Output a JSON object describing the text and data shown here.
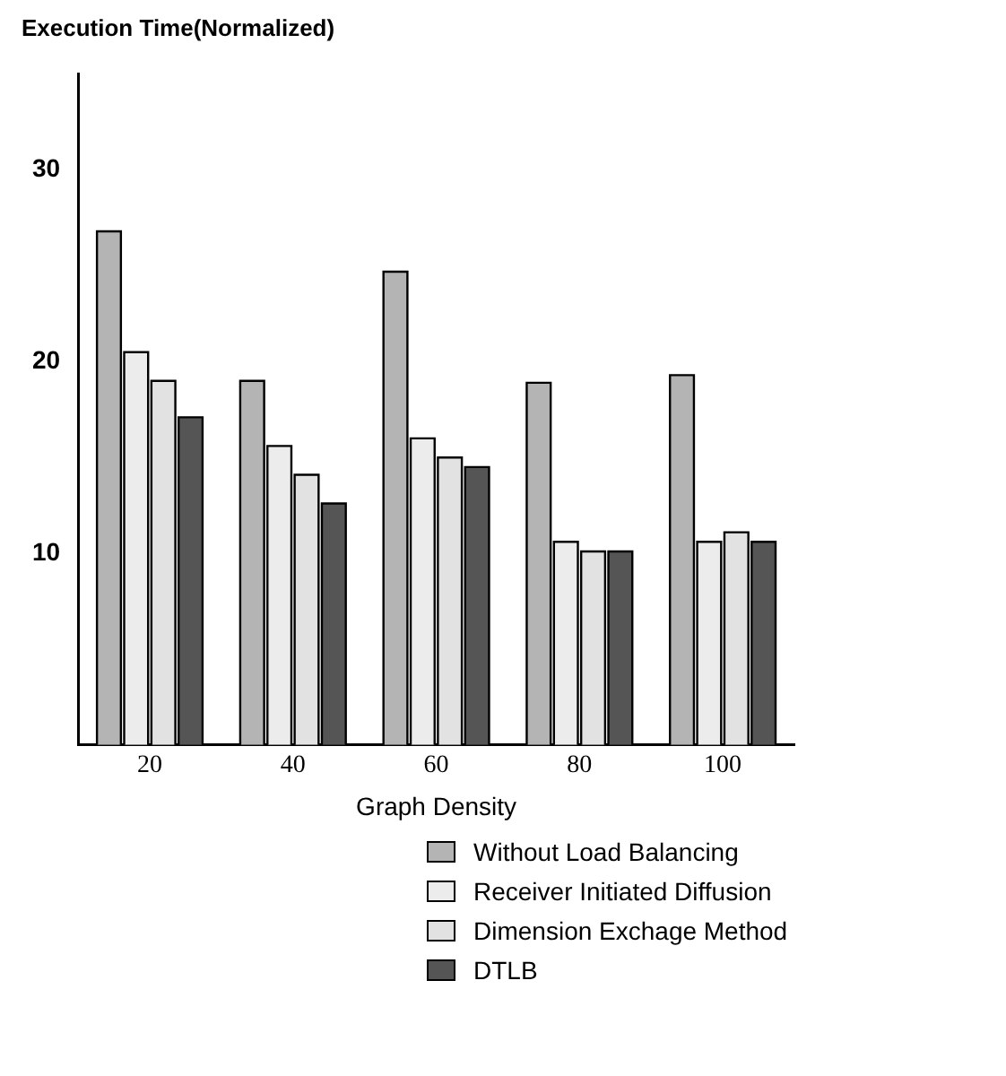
{
  "chart_data": {
    "type": "bar",
    "ylabel": "Execution Time(Normalized)",
    "xlabel": "Graph Density",
    "categories": [
      "20",
      "40",
      "60",
      "80",
      "100"
    ],
    "series": [
      {
        "name": "Without Load Balancing",
        "color": "#b4b4b4",
        "values": [
          26.8,
          19.0,
          24.7,
          18.9,
          19.3
        ]
      },
      {
        "name": "Receiver Initiated Diffusion",
        "color": "#ececec",
        "values": [
          20.5,
          15.6,
          16.0,
          10.6,
          10.6
        ]
      },
      {
        "name": "Dimension Exchage Method",
        "color": "#e2e2e2",
        "values": [
          19.0,
          14.1,
          15.0,
          10.1,
          11.1
        ]
      },
      {
        "name": "DTLB",
        "color": "#555555",
        "values": [
          17.1,
          12.6,
          14.5,
          10.1,
          10.6
        ]
      }
    ],
    "ylim": [
      0,
      35
    ],
    "yticks": [
      10,
      20,
      30
    ],
    "grid": false,
    "legend": "bottom"
  }
}
